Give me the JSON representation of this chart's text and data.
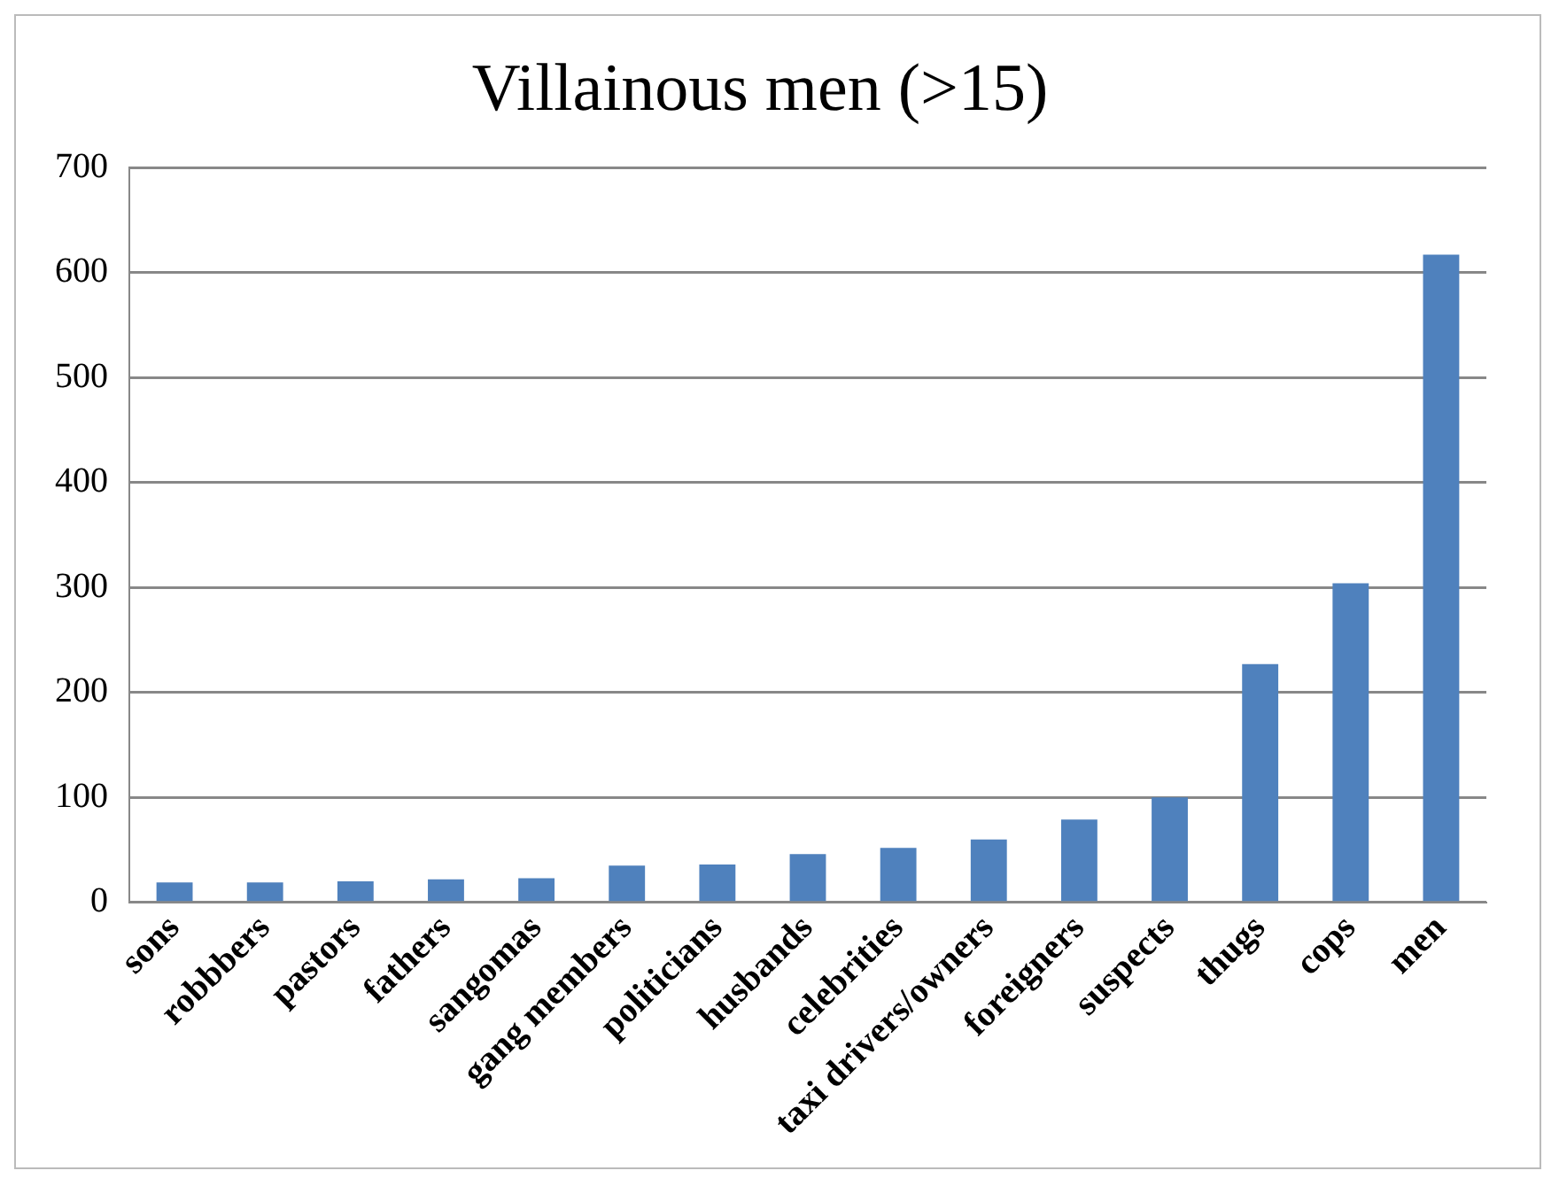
{
  "chart_data": {
    "type": "bar",
    "title": "Villainous men (>15)",
    "categories": [
      "sons",
      "robbbers",
      "pastors",
      "fathers",
      "sangomas",
      "gang members",
      "politicians",
      "husbands",
      "celebrities",
      "taxi drivers/owners",
      "foreigners",
      "suspects",
      "thugs",
      "cops",
      "men"
    ],
    "values": [
      19,
      19,
      20,
      22,
      23,
      35,
      36,
      46,
      52,
      60,
      79,
      100,
      227,
      304,
      617
    ],
    "color": "#4f81bd",
    "ylim": [
      0,
      700
    ],
    "yticks": [
      0,
      100,
      200,
      300,
      400,
      500,
      600,
      700
    ],
    "grid": "y"
  }
}
